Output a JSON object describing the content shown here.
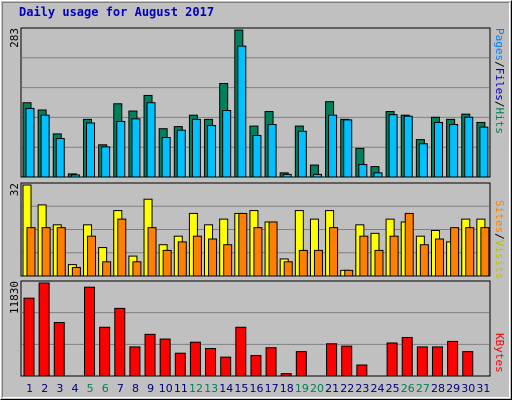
{
  "title": "Daily usage for August 2017",
  "colors": {
    "hits": "#00805c",
    "files": "#0080ff",
    "files_fill": "#00c0ff",
    "sites": "#ff8000",
    "visits": "#ffff00",
    "kbytes": "#ff0000",
    "weekend_label": "#00805c",
    "weekday_label": "#000080",
    "panel_bg": "#c0c0c0"
  },
  "legend": {
    "pages": "Pages",
    "files": "Files",
    "hits": "Hits",
    "sites": "Sites",
    "visits": "Visits",
    "kbytes": "KBytes",
    "sep": "/"
  },
  "chart_data": {
    "type": "bar",
    "title": "Daily usage for August 2017",
    "categories": [
      "1",
      "2",
      "3",
      "4",
      "5",
      "6",
      "7",
      "8",
      "9",
      "10",
      "11",
      "12",
      "13",
      "14",
      "15",
      "16",
      "17",
      "18",
      "19",
      "20",
      "21",
      "22",
      "23",
      "24",
      "25",
      "26",
      "27",
      "28",
      "29",
      "30",
      "31"
    ],
    "weekend_days": [
      "5",
      "6",
      "12",
      "13",
      "19",
      "20",
      "26",
      "27"
    ],
    "panels": [
      {
        "name": "pages-files-hits",
        "max_label": "283",
        "max": 283,
        "series": [
          {
            "name": "Hits",
            "values": [
              143,
              129,
              83,
              6,
              111,
              62,
              141,
              127,
              157,
              93,
              97,
              119,
              111,
              180,
              283,
              98,
              126,
              8,
              98,
              23,
              145,
              111,
              55,
              20,
              126,
              119,
              72,
              115,
              111,
              121,
              105
            ]
          },
          {
            "name": "Files",
            "values": [
              132,
              119,
              74,
              4,
              104,
              58,
              107,
              112,
              143,
              76,
              90,
              111,
              99,
              128,
              252,
              80,
              101,
              5,
              88,
              5,
              119,
              110,
              24,
              8,
              120,
              117,
              64,
              105,
              101,
              115,
              96
            ]
          },
          {
            "name": "Pages",
            "values": [
              132,
              119,
              74,
              4,
              104,
              58,
              107,
              112,
              143,
              76,
              90,
              111,
              99,
              128,
              252,
              80,
              101,
              5,
              88,
              5,
              119,
              110,
              24,
              8,
              120,
              117,
              64,
              105,
              101,
              115,
              96
            ]
          }
        ]
      },
      {
        "name": "visits-sites",
        "max_label": "32",
        "max": 32,
        "series": [
          {
            "name": "Visits",
            "values": [
              32,
              25,
              18,
              4,
              18,
              10,
              23,
              7,
              27,
              11,
              14,
              22,
              18,
              20,
              22,
              23,
              19,
              6,
              23,
              20,
              23,
              2,
              18,
              15,
              20,
              19,
              14,
              16,
              12,
              20,
              20
            ]
          },
          {
            "name": "Sites",
            "values": [
              17,
              17,
              17,
              3,
              14,
              5,
              20,
              5,
              17,
              9,
              12,
              14,
              13,
              11,
              22,
              17,
              19,
              5,
              9,
              9,
              17,
              2,
              14,
              9,
              14,
              22,
              11,
              13,
              17,
              17,
              17
            ]
          }
        ]
      },
      {
        "name": "kbytes",
        "max_label": "11830",
        "max": 11830,
        "series": [
          {
            "name": "KBytes",
            "values": [
              9900,
              11830,
              6800,
              0,
              11300,
              6200,
              8600,
              3700,
              5300,
              4700,
              2900,
              4300,
              3500,
              2400,
              6200,
              2600,
              3600,
              300,
              3100,
              0,
              4100,
              3800,
              1400,
              0,
              4200,
              4900,
              3700,
              3700,
              4400,
              3100,
              0
            ]
          }
        ]
      }
    ]
  }
}
